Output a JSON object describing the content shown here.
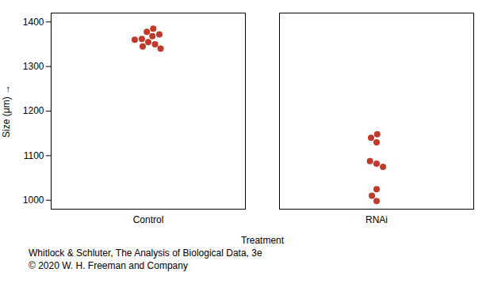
{
  "chart_data": {
    "type": "strip",
    "xlabel": "Treatment",
    "ylabel": "Size (μm)",
    "categories": [
      "Control",
      "RNAi"
    ],
    "values": [
      [
        1355,
        1362,
        1368,
        1372,
        1378,
        1350,
        1345,
        1360,
        1385,
        1340
      ],
      [
        1130,
        1140,
        1148,
        1082,
        1088,
        1075,
        998,
        1010,
        1025
      ]
    ],
    "color": "#c0392b",
    "ylim": [
      980,
      1420
    ],
    "yticks": [
      1000,
      1100,
      1200,
      1300,
      1400
    ],
    "caption": [
      "Whitlock & Schluter, The Analysis of Biological Data, 3e",
      "© 2020 W. H. Freeman and Company"
    ]
  }
}
